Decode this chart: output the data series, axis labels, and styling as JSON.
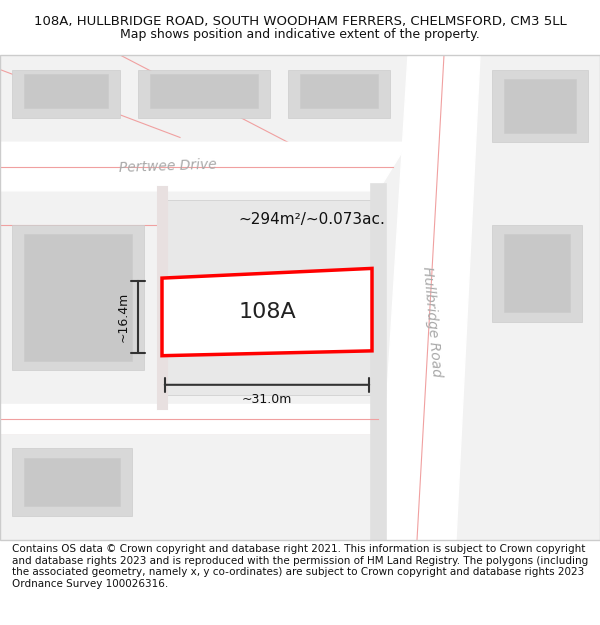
{
  "title_line1": "108A, HULLBRIDGE ROAD, SOUTH WOODHAM FERRERS, CHELMSFORD, CM3 5LL",
  "title_line2": "Map shows position and indicative extent of the property.",
  "footer_text": "Contains OS data © Crown copyright and database right 2021. This information is subject to Crown copyright and database rights 2023 and is reproduced with the permission of HM Land Registry. The polygons (including the associated geometry, namely x, y co-ordinates) are subject to Crown copyright and database rights 2023 Ordnance Survey 100026316.",
  "area_label": "~294m²/~0.073ac.",
  "width_label": "~31.0m",
  "height_label": "~16.4m",
  "property_label": "108A",
  "background_color": "#ffffff",
  "map_bg_color": "#f0f0f0",
  "road_color": "#ffffff",
  "building_color": "#e0e0e0",
  "property_fill": "#ffffff",
  "property_edge": "#ff0000",
  "road_line_color": "#f5c0c0",
  "street_label_pertwee": "Pertwee Drive",
  "street_label_hullbridge": "Hullbridge Road",
  "title_fontsize": 9.5,
  "subtitle_fontsize": 9,
  "footer_fontsize": 7.5,
  "map_xlim": [
    0,
    100
  ],
  "map_ylim": [
    0,
    100
  ]
}
